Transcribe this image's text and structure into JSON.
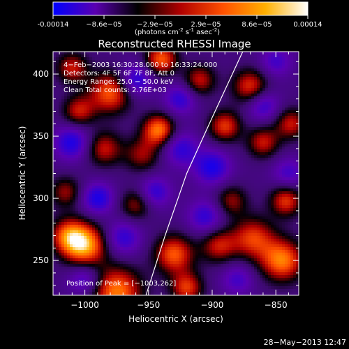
{
  "colorbar": {
    "tick_labels": [
      "-0.00014",
      "−8.6e−05",
      "−2.9e−05",
      "2.9e−05",
      "8.6e−05",
      "0.00014"
    ],
    "units_main": "(photons cm",
    "units_exp1": "-2",
    "units_mid": " s",
    "units_exp2": "-1",
    "units_mid2": " asec",
    "units_exp3": "-2",
    "units_close": ")",
    "colormap": [
      "#0000ff",
      "#5a00b0",
      "#000000",
      "#b00000",
      "#ff5000",
      "#ffb000",
      "#ffffff"
    ]
  },
  "chart_data": {
    "type": "heatmap",
    "title": "Reconstructed RHESSI Image",
    "xlabel": "Heliocentric X (arcsec)",
    "ylabel": "Heliocentric Y (arcsec)",
    "xlim": [
      -1025,
      -832
    ],
    "ylim": [
      222,
      418
    ],
    "x_ticks": [
      -1000,
      -950,
      -900,
      -850
    ],
    "y_ticks": [
      250,
      300,
      350,
      400
    ],
    "x_tick_labels": [
      "−1000",
      "−950",
      "−900",
      "−850"
    ],
    "y_tick_labels": [
      "250",
      "300",
      "350",
      "400"
    ],
    "value_range": [
      -0.00014,
      0.00014
    ],
    "info_lines": [
      "4−Feb−2003 16:30:28.000 to 16:33:24.000",
      "Detectors: 4F 5F 6F 7F 8F, Att 0",
      "Energy Range: 25.0 − 50.0 keV",
      "Clean    Total counts: 2.76E+03"
    ],
    "peak_label": "Position of Peak = [−1003,262]",
    "limb_curve": [
      [
        -952,
        222
      ],
      [
        -937,
        270
      ],
      [
        -920,
        320
      ],
      [
        -900,
        365
      ],
      [
        -876,
        418
      ]
    ],
    "blobs": [
      {
        "x": -1000,
        "y": 262,
        "v": 1.0,
        "s": 12
      },
      {
        "x": -1013,
        "y": 270,
        "v": 0.7,
        "s": 10
      },
      {
        "x": -975,
        "y": 225,
        "v": 0.9,
        "s": 14
      },
      {
        "x": -980,
        "y": 385,
        "v": 0.8,
        "s": 12
      },
      {
        "x": -942,
        "y": 355,
        "v": 0.9,
        "s": 9
      },
      {
        "x": -955,
        "y": 335,
        "v": 0.5,
        "s": 10
      },
      {
        "x": -985,
        "y": 340,
        "v": 0.6,
        "s": 10
      },
      {
        "x": -1005,
        "y": 370,
        "v": 0.6,
        "s": 9
      },
      {
        "x": -930,
        "y": 255,
        "v": 0.8,
        "s": 11
      },
      {
        "x": -895,
        "y": 262,
        "v": 0.6,
        "s": 10
      },
      {
        "x": -868,
        "y": 268,
        "v": 0.7,
        "s": 12
      },
      {
        "x": -845,
        "y": 250,
        "v": 0.9,
        "s": 12
      },
      {
        "x": -885,
        "y": 298,
        "v": 0.5,
        "s": 9
      },
      {
        "x": -842,
        "y": 298,
        "v": 0.7,
        "s": 9
      },
      {
        "x": -910,
        "y": 395,
        "v": 0.6,
        "s": 9
      },
      {
        "x": -870,
        "y": 390,
        "v": 0.7,
        "s": 10
      },
      {
        "x": -890,
        "y": 358,
        "v": 0.7,
        "s": 9
      },
      {
        "x": -860,
        "y": 345,
        "v": 0.6,
        "s": 9
      },
      {
        "x": -838,
        "y": 360,
        "v": 0.6,
        "s": 9
      },
      {
        "x": -960,
        "y": 295,
        "v": 0.5,
        "s": 9
      },
      {
        "x": -1015,
        "y": 305,
        "v": 0.5,
        "s": 9
      },
      {
        "x": -1010,
        "y": 405,
        "v": 0.6,
        "s": 9
      },
      {
        "x": -940,
        "y": 412,
        "v": 0.8,
        "s": 9
      },
      {
        "x": -920,
        "y": 228,
        "v": 0.7,
        "s": 9
      },
      {
        "x": -990,
        "y": 300,
        "v": -0.6,
        "s": 9
      },
      {
        "x": -970,
        "y": 268,
        "v": -0.5,
        "s": 10
      },
      {
        "x": -1010,
        "y": 345,
        "v": -0.6,
        "s": 10
      },
      {
        "x": -960,
        "y": 395,
        "v": -0.6,
        "s": 9
      },
      {
        "x": -925,
        "y": 340,
        "v": -0.5,
        "s": 10
      },
      {
        "x": -900,
        "y": 325,
        "v": -0.6,
        "s": 10
      },
      {
        "x": -860,
        "y": 375,
        "v": -0.5,
        "s": 9
      },
      {
        "x": -905,
        "y": 285,
        "v": -0.5,
        "s": 10
      },
      {
        "x": -945,
        "y": 305,
        "v": -0.5,
        "s": 9
      },
      {
        "x": -1000,
        "y": 235,
        "v": -0.5,
        "s": 9
      },
      {
        "x": -880,
        "y": 235,
        "v": -0.4,
        "s": 9
      },
      {
        "x": -840,
        "y": 320,
        "v": -0.4,
        "s": 9
      },
      {
        "x": -925,
        "y": 380,
        "v": -0.5,
        "s": 9
      },
      {
        "x": -850,
        "y": 410,
        "v": -0.4,
        "s": 9
      }
    ]
  },
  "footer": {
    "timestamp": "28−May−2013 12:47"
  }
}
